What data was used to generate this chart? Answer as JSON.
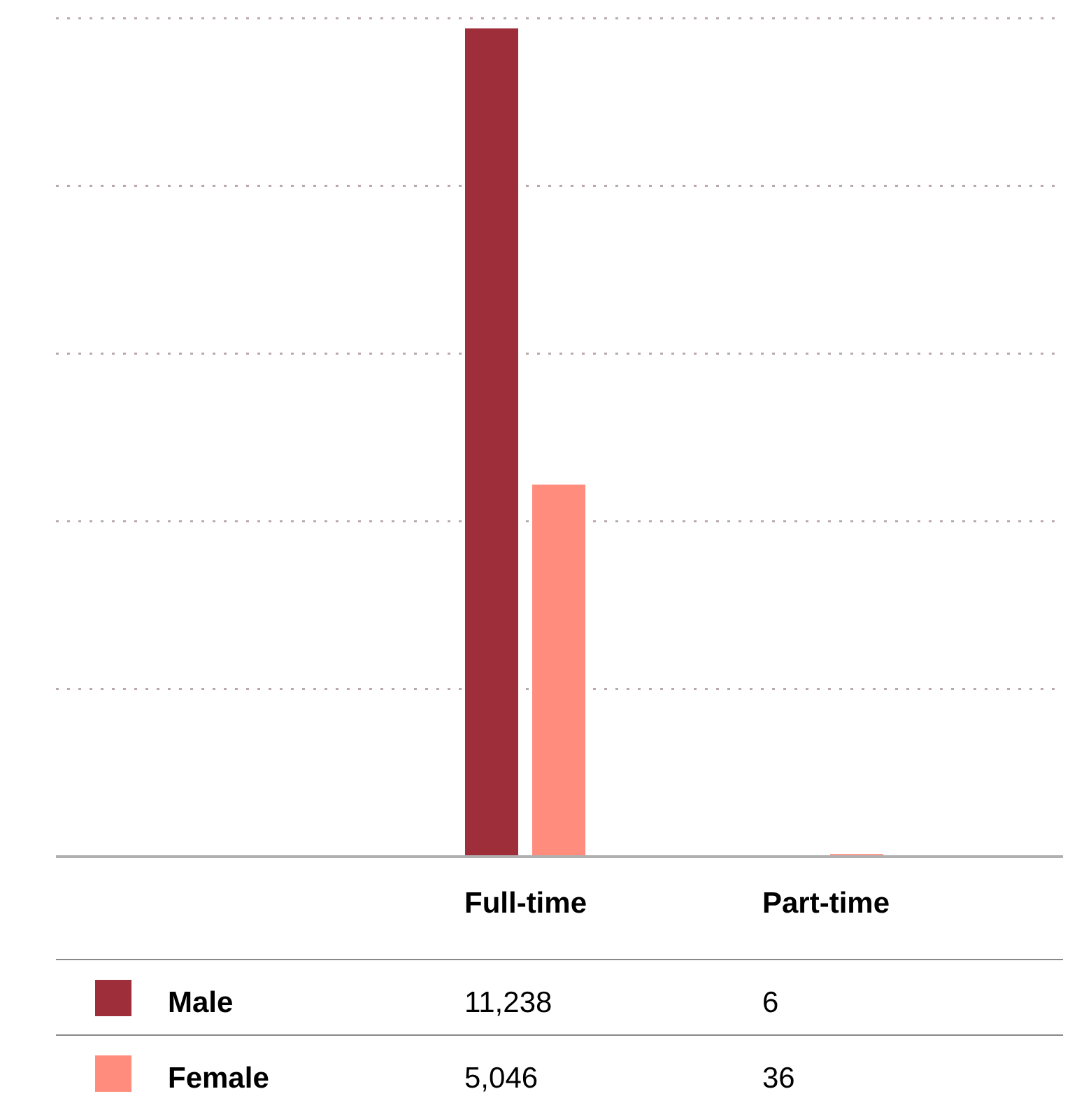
{
  "chart_data": {
    "type": "bar",
    "categories": [
      "Full-time",
      "Part-time"
    ],
    "series": [
      {
        "name": "Male",
        "color": "#9e2f3a",
        "values": [
          11238,
          6
        ],
        "value_labels": [
          "11,238",
          "6"
        ]
      },
      {
        "name": "Female",
        "color": "#ff8c7c",
        "values": [
          5046,
          36
        ],
        "value_labels": [
          "5,046",
          "36"
        ]
      }
    ],
    "ylim": [
      0,
      11375
    ],
    "yticks": [
      {
        "value": 0,
        "label": null
      },
      {
        "value": 2275,
        "label": null
      },
      {
        "value": 4550,
        "label": null
      },
      {
        "value": 6825,
        "label": null
      },
      {
        "value": 9100,
        "label": null
      },
      {
        "value": 11375,
        "label": null
      }
    ],
    "grid": "y",
    "legend": "bottom"
  }
}
